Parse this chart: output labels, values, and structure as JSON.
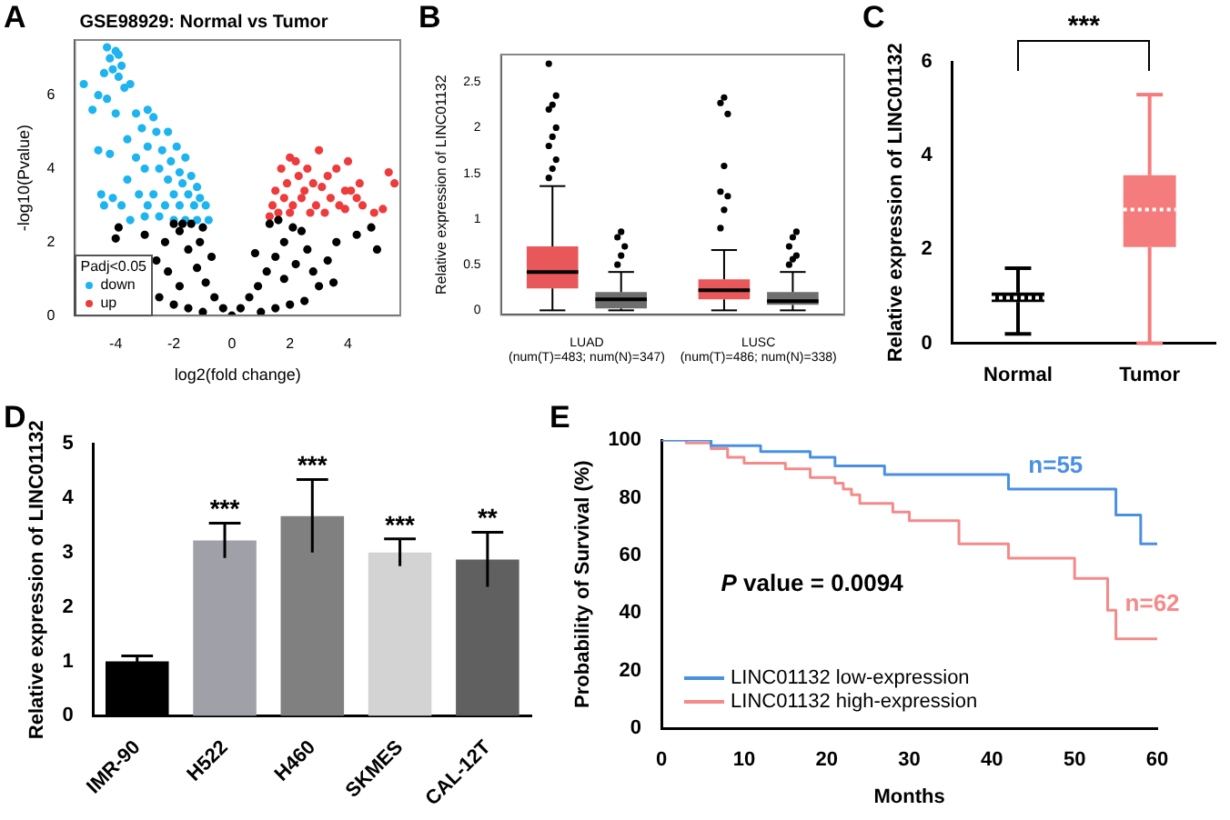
{
  "chart_data": [
    {
      "type": "scatter",
      "title": "GSE98929: Normal vs Tumor",
      "xlabel": "log2(fold change)",
      "ylabel": "-log10(Pvalue)",
      "legend_title": "Padj<0.05",
      "legend": "bottom left",
      "grid": false,
      "marker": "circle",
      "annotations": [
        "A"
      ],
      "xlim": [
        -5.4,
        5.8
      ],
      "xticks": [
        -4,
        -2,
        0,
        2,
        4
      ],
      "ylim": [
        0,
        7.5
      ],
      "yticks": [
        0,
        2,
        4,
        6
      ],
      "series": [
        {
          "color": "#000000",
          "x": [
            0,
            -0.3,
            -0.6,
            -0.9,
            -1.2,
            -1.5,
            -1.8,
            -2.0,
            -1.0,
            -1.4,
            -1.7,
            -2.3,
            -2.6,
            -2.5,
            -2.0,
            -1.5,
            -1.0,
            -2.2,
            -1.8,
            -4.0,
            -3.9,
            -3.0,
            0.3,
            0.6,
            0.9,
            1.2,
            1.5,
            1.8,
            2.1,
            2.4,
            2.6,
            2.8,
            3.0,
            2.5,
            2.0,
            1.5,
            1.0,
            1.8,
            2.2,
            3.3,
            3.6,
            4.3,
            4.8,
            5.0,
            3.5,
            1.3,
            1.6,
            -0.7,
            -1.1,
            0.8
          ],
          "values": [
            0,
            0.2,
            0.5,
            0.9,
            1.3,
            1.8,
            2.3,
            2.5,
            2.4,
            2.5,
            2.5,
            2.0,
            1.5,
            0.5,
            0.3,
            0.2,
            0.1,
            1.2,
            0.8,
            2.1,
            2.4,
            2.2,
            0.2,
            0.5,
            0.8,
            1.2,
            1.6,
            2.0,
            2.4,
            2.3,
            1.8,
            1.2,
            0.8,
            0.4,
            0.3,
            0.2,
            0.1,
            1.0,
            1.4,
            1.5,
            2.0,
            2.2,
            2.4,
            1.8,
            0.9,
            2.5,
            2.6,
            1.6,
            2.0,
            1.7
          ]
        },
        {
          "name": "down",
          "color": "#1eb4f0",
          "x": [
            -4.3,
            -4.0,
            -3.9,
            -4.2,
            -3.8,
            -4.1,
            -3.9,
            -4.4,
            -5.1,
            -4.6,
            -4.3,
            -3.7,
            -3.5,
            -4.8,
            -4.0,
            -3.3,
            -2.9,
            -2.7,
            -3.1,
            -2.6,
            -2.2,
            -3.6,
            -2.9,
            -2.4,
            -1.9,
            -4.6,
            -4.2,
            -3.3,
            -2.1,
            -1.6,
            -3.0,
            -2.5,
            -1.8,
            -1.4,
            -3.6,
            -2.2,
            -1.7,
            -1.2,
            -4.5,
            -4.1,
            -3.2,
            -2.7,
            -2.0,
            -1.5,
            -1.1,
            -4.4,
            -3.8,
            -2.9,
            -2.3,
            -1.8,
            -1.3,
            -0.9,
            -3.0,
            -2.5,
            -2.0,
            -1.6,
            -1.2,
            -0.8,
            -3.5
          ],
          "values": [
            7.3,
            7.2,
            7.1,
            7.0,
            6.8,
            6.7,
            6.5,
            6.6,
            6.3,
            6.0,
            5.9,
            6.2,
            6.3,
            5.6,
            5.5,
            5.5,
            5.6,
            5.4,
            5.1,
            5.0,
            5.0,
            4.8,
            4.6,
            4.5,
            4.6,
            4.5,
            4.4,
            4.3,
            4.2,
            4.3,
            4.0,
            4.0,
            3.9,
            3.8,
            3.7,
            3.7,
            3.6,
            3.5,
            3.3,
            3.2,
            3.3,
            3.3,
            3.3,
            3.3,
            3.2,
            3.0,
            3.0,
            3.0,
            3.0,
            3.0,
            3.0,
            3.0,
            2.7,
            2.7,
            2.6,
            2.6,
            2.6,
            2.6,
            2.6
          ]
        },
        {
          "name": "up",
          "color": "#ee3b3b",
          "x": [
            3.0,
            2.0,
            2.2,
            4.0,
            1.7,
            2.6,
            3.6,
            5.4,
            2.3,
            3.3,
            1.9,
            2.8,
            4.4,
            5.6,
            1.5,
            2.5,
            3.1,
            3.9,
            4.1,
            1.8,
            2.4,
            3.4,
            4.3,
            1.4,
            2.1,
            2.9,
            3.7,
            4.5,
            1.6,
            2.0,
            2.7,
            3.2,
            3.9,
            4.9,
            5.2,
            1.3
          ],
          "values": [
            4.5,
            4.3,
            4.2,
            4.2,
            4.0,
            4.0,
            4.0,
            3.9,
            3.8,
            3.8,
            3.6,
            3.6,
            3.6,
            3.6,
            3.4,
            3.4,
            3.5,
            3.4,
            3.4,
            3.2,
            3.2,
            3.2,
            3.2,
            3.0,
            3.0,
            3.0,
            3.0,
            3.0,
            2.8,
            2.8,
            2.8,
            2.8,
            2.9,
            2.8,
            2.9,
            2.7
          ]
        }
      ]
    },
    {
      "type": "box",
      "ylabel": "Relative expression of LINC01132",
      "grid": false,
      "annotations": [
        "B"
      ],
      "categories": [
        "LUAD\n(num(T)=483; num(N)=347)",
        "LUSC\n(num(T)=486; num(N)=338)"
      ],
      "ylim": [
        -0.05,
        2.8
      ],
      "yticks": [
        0,
        0.5,
        1,
        1.5,
        2,
        2.5
      ],
      "series": [
        {
          "color": "#e8585a",
          "boxes": [
            {
              "low": 0,
              "q1": 0.24,
              "median": 0.42,
              "q3": 0.7,
              "high": 1.36,
              "outliers": [
                1.45,
                1.55,
                1.65,
                1.8,
                1.9,
                2.0,
                2.2,
                2.25,
                2.35,
                2.7
              ]
            },
            {
              "low": 0,
              "q1": 0.12,
              "median": 0.22,
              "q3": 0.34,
              "high": 0.66,
              "outliers": [
                0.9,
                1.1,
                1.25,
                1.3,
                1.58,
                2.15,
                2.27,
                2.33
              ]
            }
          ]
        },
        {
          "color": "#6e6e6e",
          "boxes": [
            {
              "low": 0,
              "q1": 0.02,
              "median": 0.12,
              "q3": 0.2,
              "high": 0.42,
              "outliers": [
                0.5,
                0.6,
                0.7,
                0.8,
                0.86
              ]
            },
            {
              "low": 0,
              "q1": 0.06,
              "median": 0.1,
              "q3": 0.2,
              "high": 0.42,
              "outliers": [
                0.5,
                0.56,
                0.6,
                0.7,
                0.8,
                0.86
              ]
            }
          ]
        }
      ]
    },
    {
      "type": "box",
      "ylabel": "Relative expression of LINC01132",
      "grid": false,
      "annotations": [
        "C",
        "***"
      ],
      "categories": [
        "Normal",
        "Tumor"
      ],
      "ylim": [
        0,
        6
      ],
      "yticks": [
        0,
        2,
        4,
        6
      ],
      "series": [
        {
          "colors": [
            "#000000",
            "#f47c7c"
          ],
          "boxes": [
            {
              "low": 0.2,
              "q1": 0.88,
              "median": 0.97,
              "q3": 1.08,
              "high": 1.6
            },
            {
              "low": 0,
              "q1": 2.05,
              "median": 2.85,
              "q3": 3.58,
              "high": 5.3
            }
          ]
        }
      ]
    },
    {
      "type": "bar",
      "ylabel": "Relative expression of LINC01132",
      "grid": false,
      "categories": [
        "IMR-90",
        "H522",
        "H460",
        "SKMES",
        "CAL-12T"
      ],
      "values": [
        1.0,
        3.22,
        3.67,
        3.0,
        2.87
      ],
      "errors": [
        0.1,
        0.32,
        0.67,
        0.25,
        0.5
      ],
      "colors": [
        "#000000",
        "#a0a0a8",
        "#808080",
        "#d3d3d3",
        "#606060"
      ],
      "ylim": [
        0,
        5
      ],
      "yticks": [
        0,
        1,
        2,
        3,
        4,
        5
      ],
      "annotations": [
        "D",
        {
          "text": "***",
          "x": "H522",
          "y": 3.54
        },
        {
          "text": "***",
          "x": "H460",
          "y": 4.34
        },
        {
          "text": "***",
          "x": "SKMES",
          "y": 3.25
        },
        {
          "text": "**",
          "x": "CAL-12T",
          "y": 3.37
        }
      ]
    },
    {
      "type": "step",
      "xlabel": "Months",
      "ylabel": "Probability of Survival (%)",
      "grid": false,
      "legend": "bottom left",
      "xlim": [
        0,
        60
      ],
      "xticks": [
        0,
        10,
        20,
        30,
        40,
        50,
        60
      ],
      "ylim": [
        0,
        100
      ],
      "yticks": [
        0,
        20,
        40,
        60,
        80,
        100
      ],
      "annotations": [
        "E",
        "P value = 0.0094",
        "n=55",
        "n=62"
      ],
      "series": [
        {
          "name": "LINC01132 low-expression",
          "color": "#4a90e2",
          "x": [
            0,
            6,
            12,
            18,
            21,
            27,
            42,
            55,
            58,
            60
          ],
          "values": [
            100,
            98,
            96,
            94,
            91,
            88,
            83,
            74,
            64,
            64
          ]
        },
        {
          "name": "LINC01132 high-expression",
          "color": "#f48a8a",
          "x": [
            0,
            3,
            6,
            8,
            10,
            15,
            18,
            21,
            22,
            23,
            24,
            28,
            30,
            36,
            42,
            50,
            54,
            55,
            60
          ],
          "values": [
            100,
            99,
            97,
            94,
            92,
            90,
            87,
            85,
            83,
            81,
            78,
            75,
            72,
            64,
            59,
            52,
            41,
            31,
            31
          ]
        }
      ]
    }
  ]
}
